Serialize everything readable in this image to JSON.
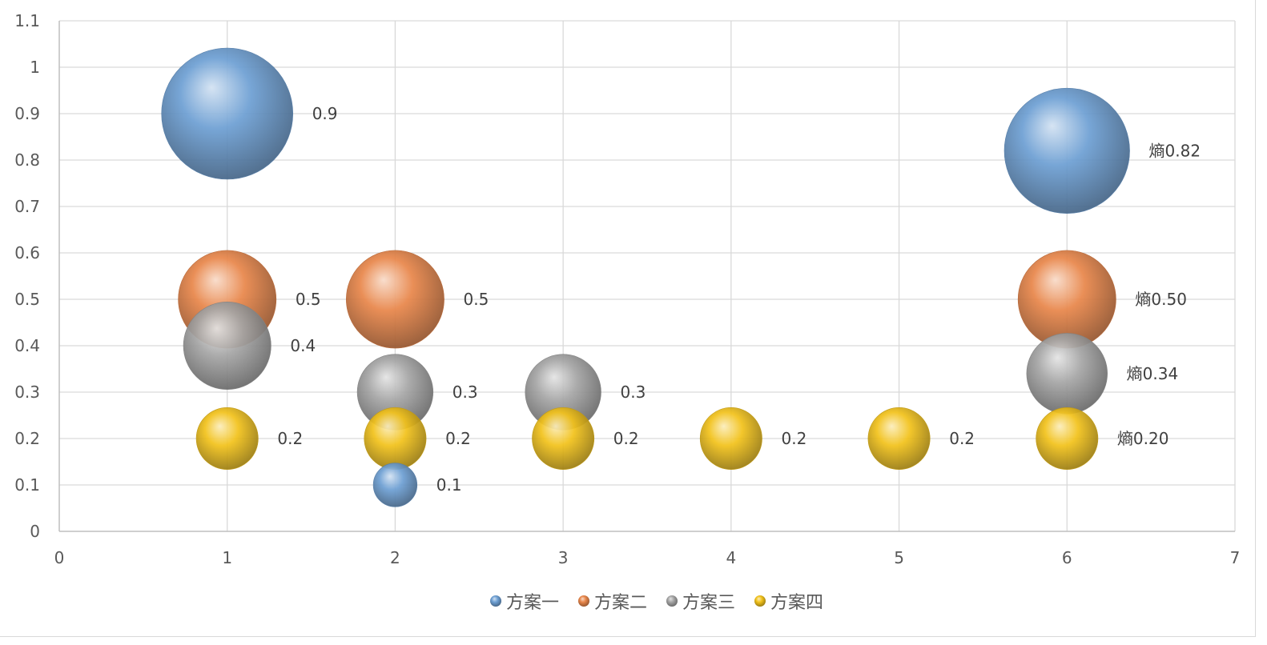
{
  "chart_data": {
    "type": "bubble",
    "title": "",
    "xlabel": "",
    "ylabel": "",
    "xlim": [
      0,
      7
    ],
    "ylim": [
      0,
      1.1
    ],
    "x_ticks": [
      "0",
      "1",
      "2",
      "3",
      "4",
      "5",
      "6",
      "7"
    ],
    "y_ticks": [
      "0",
      "0.1",
      "0.2",
      "0.3",
      "0.4",
      "0.5",
      "0.6",
      "0.7",
      "0.8",
      "0.9",
      "1",
      "1.1"
    ],
    "grid": true,
    "legend_position": "bottom",
    "series": [
      {
        "name": "方案一",
        "color": "#6d9fd3",
        "points": [
          {
            "x": 1,
            "y": 0.9,
            "size": 0.9,
            "label": "0.9"
          },
          {
            "x": 2,
            "y": 0.1,
            "size": 0.1,
            "label": "0.1"
          },
          {
            "x": 6,
            "y": 0.82,
            "size": 0.82,
            "label": "熵0.82"
          }
        ]
      },
      {
        "name": "方案二",
        "color": "#e8864a",
        "points": [
          {
            "x": 1,
            "y": 0.5,
            "size": 0.5,
            "label": "0.5"
          },
          {
            "x": 2,
            "y": 0.5,
            "size": 0.5,
            "label": "0.5"
          },
          {
            "x": 6,
            "y": 0.5,
            "size": 0.5,
            "label": "熵0.50"
          }
        ]
      },
      {
        "name": "方案三",
        "color": "#a5a5a5",
        "points": [
          {
            "x": 1,
            "y": 0.4,
            "size": 0.4,
            "label": "0.4"
          },
          {
            "x": 2,
            "y": 0.3,
            "size": 0.3,
            "label": "0.3"
          },
          {
            "x": 3,
            "y": 0.3,
            "size": 0.3,
            "label": "0.3"
          },
          {
            "x": 6,
            "y": 0.34,
            "size": 0.34,
            "label": "熵0.34"
          }
        ]
      },
      {
        "name": "方案四",
        "color": "#f2c21b",
        "points": [
          {
            "x": 1,
            "y": 0.2,
            "size": 0.2,
            "label": "0.2"
          },
          {
            "x": 2,
            "y": 0.2,
            "size": 0.2,
            "label": "0.2"
          },
          {
            "x": 3,
            "y": 0.2,
            "size": 0.2,
            "label": "0.2"
          },
          {
            "x": 4,
            "y": 0.2,
            "size": 0.2,
            "label": "0.2"
          },
          {
            "x": 5,
            "y": 0.2,
            "size": 0.2,
            "label": "0.2"
          },
          {
            "x": 6,
            "y": 0.2,
            "size": 0.2,
            "label": "熵0.20"
          }
        ]
      }
    ]
  }
}
